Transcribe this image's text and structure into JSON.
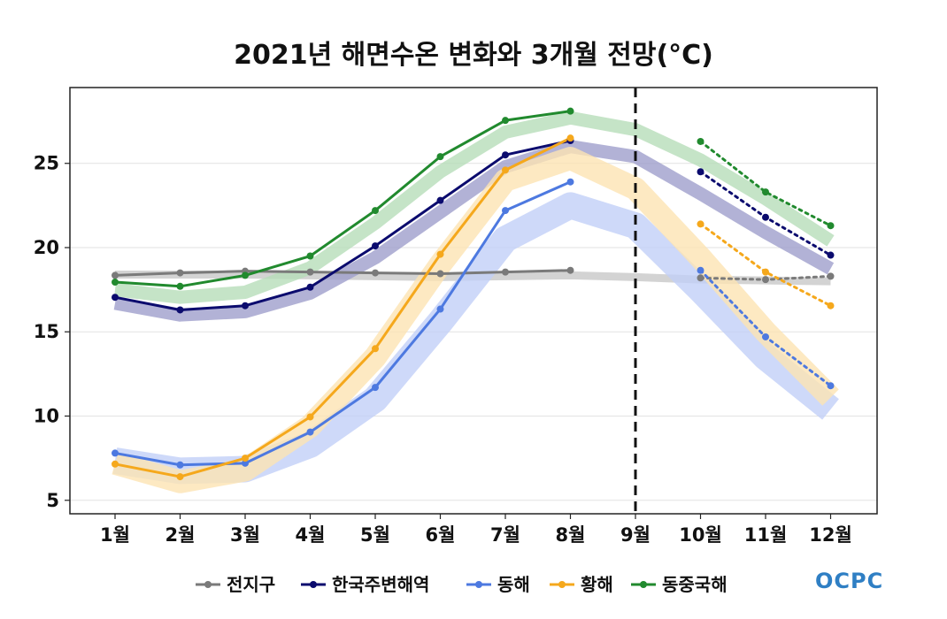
{
  "chart_data": {
    "type": "line",
    "title": "2021년 해면수온 변화와 3개월 전망(°C)",
    "xlabel": "",
    "ylabel": "",
    "categories": [
      "1월",
      "2월",
      "3월",
      "4월",
      "5월",
      "6월",
      "7월",
      "8월",
      "9월",
      "10월",
      "11월",
      "12월"
    ],
    "yticks": [
      5,
      10,
      15,
      20,
      25
    ],
    "ylim": [
      4.2,
      29.5
    ],
    "grid": "horizontal",
    "legend_placement": "bottom-center",
    "forecast_divider_at": "9월",
    "series": [
      {
        "name": "전지구",
        "color": "#7a7a7a",
        "band_color": "#c8c8c8",
        "observed": [
          18.35,
          18.5,
          18.6,
          18.55,
          18.5,
          18.45,
          18.55,
          18.65,
          null,
          null,
          null,
          null
        ],
        "forecast": [
          null,
          null,
          null,
          null,
          null,
          null,
          null,
          null,
          null,
          18.2,
          18.1,
          18.3
        ],
        "band_center": [
          18.4,
          18.4,
          18.4,
          18.35,
          18.3,
          18.25,
          18.3,
          18.35,
          18.25,
          18.1,
          18.05,
          18.0
        ]
      },
      {
        "name": "한국주변해역",
        "color": "#0b0b6e",
        "band_color": "#9f9fcc",
        "observed": [
          17.05,
          16.3,
          16.55,
          17.65,
          20.1,
          22.8,
          25.5,
          26.35,
          null,
          null,
          null,
          null
        ],
        "forecast": [
          null,
          null,
          null,
          null,
          null,
          null,
          null,
          null,
          null,
          24.5,
          21.8,
          19.55
        ],
        "band_center": [
          16.7,
          16.0,
          16.2,
          17.3,
          19.4,
          22.1,
          24.8,
          26.0,
          25.4,
          23.2,
          20.9,
          18.75
        ]
      },
      {
        "name": "동해",
        "color": "#4d79e0",
        "band_color": "#c2d0f8",
        "observed": [
          7.8,
          7.1,
          7.2,
          9.05,
          11.7,
          16.35,
          22.2,
          23.9,
          null,
          null,
          null,
          null
        ],
        "forecast": [
          null,
          null,
          null,
          null,
          null,
          null,
          null,
          null,
          null,
          18.65,
          14.7,
          11.8
        ],
        "band_center": [
          7.35,
          6.75,
          6.85,
          8.3,
          11.0,
          15.6,
          20.5,
          22.5,
          21.3,
          17.5,
          13.5,
          10.4
        ]
      },
      {
        "name": "황해",
        "color": "#f5a81c",
        "band_color": "#fde3b3",
        "observed": [
          7.15,
          6.4,
          7.5,
          9.95,
          14.0,
          19.6,
          24.6,
          26.5,
          null,
          null,
          null,
          null
        ],
        "forecast": [
          null,
          null,
          null,
          null,
          null,
          null,
          null,
          null,
          null,
          21.4,
          18.55,
          16.55
        ],
        "band_center": [
          7.2,
          6.1,
          6.8,
          9.4,
          13.5,
          19.0,
          24.0,
          25.3,
          23.5,
          19.4,
          15.0,
          11.1
        ]
      },
      {
        "name": "동중국해",
        "color": "#218a2e",
        "band_color": "#b7ddb9",
        "observed": [
          17.95,
          17.7,
          18.35,
          19.5,
          22.2,
          25.4,
          27.55,
          28.1,
          null,
          null,
          null,
          null
        ],
        "forecast": [
          null,
          null,
          null,
          null,
          null,
          null,
          null,
          null,
          null,
          26.3,
          23.3,
          21.3
        ],
        "band_center": [
          17.5,
          17.05,
          17.35,
          18.8,
          21.45,
          24.5,
          26.85,
          27.7,
          27.0,
          25.2,
          22.9,
          20.4
        ]
      }
    ]
  },
  "logo_text": "OCPC"
}
